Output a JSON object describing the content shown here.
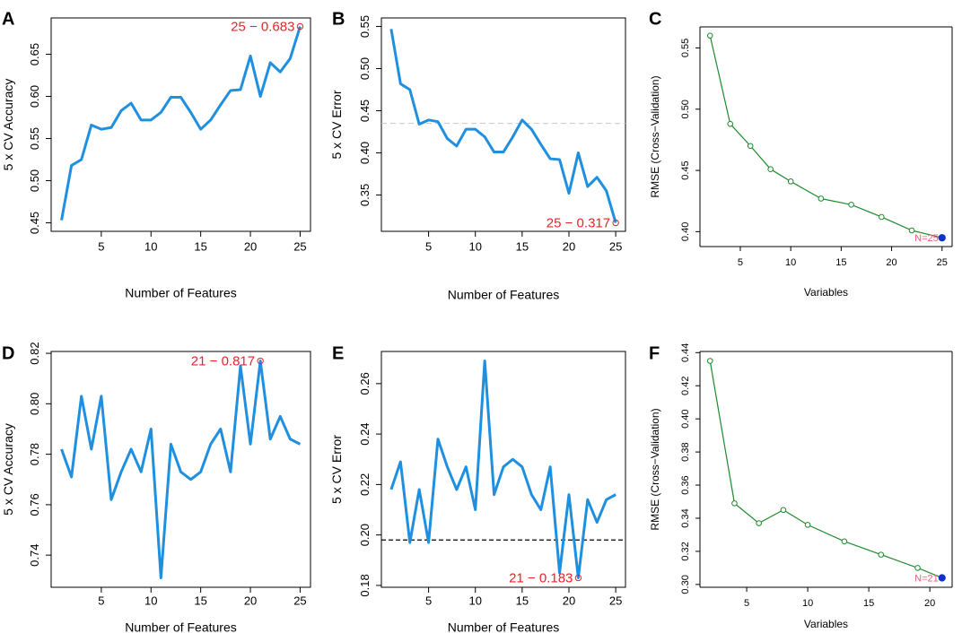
{
  "colors": {
    "line_blue": "#1f8fe0",
    "best_red": "#e8232a",
    "rfe_green": "#1e8a2e",
    "rfe_best": "#1030c8",
    "rfe_label": "#e8607a",
    "axis": "#000000",
    "ref_light": "#c8c8c8",
    "ref_dark": "#000000"
  },
  "chart_data": [
    {
      "id": "A",
      "panel_label": "A",
      "type": "line",
      "xlabel": "Number of Features",
      "ylabel": "5 x CV Accuracy",
      "xlim": [
        1,
        25
      ],
      "ylim": [
        0.45,
        0.683
      ],
      "xticks": [
        5,
        10,
        15,
        20,
        25
      ],
      "yticks": [
        0.45,
        0.5,
        0.55,
        0.6,
        0.65
      ],
      "ytick_labels": [
        "0.45",
        "0.50",
        "0.55",
        "0.60",
        "0.65"
      ],
      "x": [
        1,
        2,
        3,
        4,
        5,
        6,
        7,
        8,
        9,
        10,
        11,
        12,
        13,
        14,
        15,
        16,
        17,
        18,
        19,
        20,
        21,
        22,
        23,
        24,
        25
      ],
      "y": [
        0.453,
        0.518,
        0.525,
        0.566,
        0.561,
        0.563,
        0.583,
        0.592,
        0.572,
        0.572,
        0.581,
        0.599,
        0.599,
        0.581,
        0.561,
        0.572,
        0.59,
        0.607,
        0.608,
        0.648,
        0.6,
        0.64,
        0.629,
        0.645,
        0.683
      ],
      "best": {
        "x": 25,
        "y": 0.683,
        "label": "25 − 0.683"
      }
    },
    {
      "id": "B",
      "panel_label": "B",
      "type": "line",
      "xlabel": "Number of Features",
      "ylabel": "5 x CV Error",
      "xlim": [
        1,
        25
      ],
      "ylim": [
        0.317,
        0.55
      ],
      "xticks": [
        5,
        10,
        15,
        20,
        25
      ],
      "yticks": [
        0.35,
        0.4,
        0.45,
        0.5,
        0.55
      ],
      "ytick_labels": [
        "0.35",
        "0.40",
        "0.45",
        "0.50",
        "0.55"
      ],
      "x": [
        1,
        2,
        3,
        4,
        5,
        6,
        7,
        8,
        9,
        10,
        11,
        12,
        13,
        14,
        15,
        16,
        17,
        18,
        19,
        20,
        21,
        22,
        23,
        24,
        25
      ],
      "y": [
        0.547,
        0.482,
        0.475,
        0.434,
        0.439,
        0.437,
        0.417,
        0.408,
        0.428,
        0.428,
        0.419,
        0.401,
        0.401,
        0.419,
        0.439,
        0.428,
        0.41,
        0.393,
        0.392,
        0.352,
        0.4,
        0.36,
        0.371,
        0.355,
        0.317
      ],
      "ref_line": {
        "y": 0.435,
        "style": "dashed-light"
      },
      "best": {
        "x": 25,
        "y": 0.317,
        "label": "25 − 0.317"
      }
    },
    {
      "id": "C",
      "panel_label": "C",
      "type": "line",
      "xlabel": "Variables",
      "ylabel": "RMSE (Cross−Validation)",
      "xlim": [
        2,
        25
      ],
      "ylim": [
        0.395,
        0.56
      ],
      "xticks": [
        5,
        10,
        15,
        20,
        25
      ],
      "yticks": [
        0.4,
        0.45,
        0.5,
        0.55
      ],
      "ytick_labels": [
        "0.40",
        "0.45",
        "0.50",
        "0.55"
      ],
      "x": [
        2,
        4,
        6,
        8,
        10,
        13,
        16,
        19,
        22,
        25
      ],
      "y": [
        0.56,
        0.488,
        0.47,
        0.451,
        0.441,
        0.427,
        0.422,
        0.412,
        0.401,
        0.395
      ],
      "best": {
        "x": 25,
        "y": 0.395,
        "label": "N=25"
      }
    },
    {
      "id": "D",
      "panel_label": "D",
      "type": "line",
      "xlabel": "Number of Features",
      "ylabel": "5 x CV Accuracy",
      "xlim": [
        1,
        25
      ],
      "ylim": [
        0.731,
        0.817
      ],
      "xticks": [
        5,
        10,
        15,
        20,
        25
      ],
      "yticks": [
        0.74,
        0.76,
        0.78,
        0.8,
        0.82
      ],
      "ytick_labels": [
        "0.74",
        "0.76",
        "0.78",
        "0.80",
        "0.82"
      ],
      "x": [
        1,
        2,
        3,
        4,
        5,
        6,
        7,
        8,
        9,
        10,
        11,
        12,
        13,
        14,
        15,
        16,
        17,
        18,
        19,
        20,
        21,
        22,
        23,
        24,
        25
      ],
      "y": [
        0.782,
        0.771,
        0.803,
        0.782,
        0.803,
        0.762,
        0.773,
        0.782,
        0.773,
        0.79,
        0.731,
        0.784,
        0.773,
        0.77,
        0.773,
        0.784,
        0.79,
        0.773,
        0.815,
        0.784,
        0.817,
        0.786,
        0.795,
        0.786,
        0.784
      ],
      "best": {
        "x": 21,
        "y": 0.817,
        "label": "21 − 0.817"
      }
    },
    {
      "id": "E",
      "panel_label": "E",
      "type": "line",
      "xlabel": "Number of Features",
      "ylabel": "5 x CV Error",
      "xlim": [
        1,
        25
      ],
      "ylim": [
        0.183,
        0.269
      ],
      "xticks": [
        5,
        10,
        15,
        20,
        25
      ],
      "yticks": [
        0.18,
        0.2,
        0.22,
        0.24,
        0.26
      ],
      "ytick_labels": [
        "0.18",
        "0.20",
        "0.22",
        "0.24",
        "0.26"
      ],
      "x": [
        1,
        2,
        3,
        4,
        5,
        6,
        7,
        8,
        9,
        10,
        11,
        12,
        13,
        14,
        15,
        16,
        17,
        18,
        19,
        20,
        21,
        22,
        23,
        24,
        25
      ],
      "y": [
        0.218,
        0.229,
        0.197,
        0.218,
        0.197,
        0.238,
        0.227,
        0.218,
        0.227,
        0.21,
        0.269,
        0.216,
        0.227,
        0.23,
        0.227,
        0.216,
        0.21,
        0.227,
        0.185,
        0.216,
        0.183,
        0.214,
        0.205,
        0.214,
        0.216
      ],
      "ref_line": {
        "y": 0.198,
        "style": "dashed-dark"
      },
      "best": {
        "x": 21,
        "y": 0.183,
        "label": "21 − 0.183"
      }
    },
    {
      "id": "F",
      "panel_label": "F",
      "type": "line",
      "xlabel": "Variables",
      "ylabel": "RMSE (Cross−Validation)",
      "xlim": [
        2,
        21
      ],
      "ylim": [
        0.304,
        0.435
      ],
      "xticks": [
        5,
        10,
        15,
        20
      ],
      "yticks": [
        0.3,
        0.32,
        0.34,
        0.36,
        0.38,
        0.4,
        0.42,
        0.44
      ],
      "ytick_labels": [
        "0.30",
        "0.32",
        "0.34",
        "0.36",
        "0.38",
        "0.40",
        "0.42",
        "0.44"
      ],
      "x": [
        2,
        4,
        6,
        8,
        10,
        13,
        16,
        19,
        21
      ],
      "y": [
        0.435,
        0.349,
        0.337,
        0.345,
        0.336,
        0.326,
        0.318,
        0.31,
        0.304
      ],
      "best": {
        "x": 21,
        "y": 0.304,
        "label": "N=21"
      }
    }
  ]
}
